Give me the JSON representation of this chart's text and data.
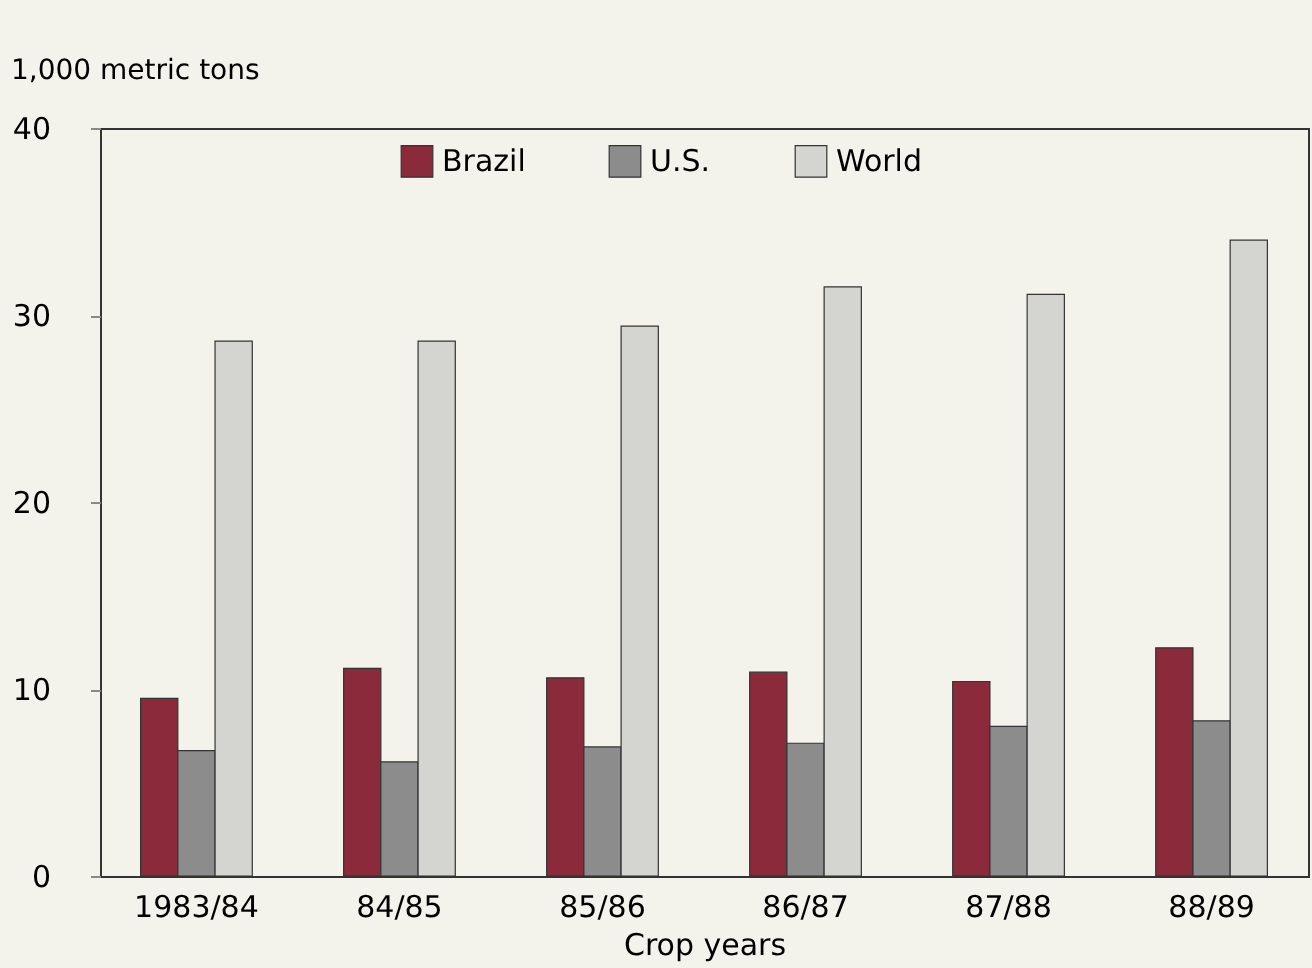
{
  "chart_data": {
    "type": "bar",
    "ylabel": "1,000 metric tons",
    "xlabel": "Crop years",
    "categories": [
      "1983/84",
      "84/85",
      "85/86",
      "86/87",
      "87/88",
      "88/89"
    ],
    "series": [
      {
        "name": "Brazil",
        "color": "#8b2a3a",
        "values": [
          9.5,
          11.1,
          10.6,
          10.9,
          10.4,
          12.2
        ]
      },
      {
        "name": "U.S.",
        "color": "#8c8c8c",
        "values": [
          6.7,
          6.1,
          6.9,
          7.1,
          8.0,
          8.3
        ]
      },
      {
        "name": "World",
        "color": "#d4d4d0",
        "values": [
          28.6,
          28.6,
          29.4,
          31.5,
          31.1,
          34.0
        ]
      }
    ],
    "ylim": [
      0,
      40
    ],
    "yticks": [
      0,
      10,
      20,
      30,
      40
    ],
    "grid": false,
    "legend": "top"
  }
}
